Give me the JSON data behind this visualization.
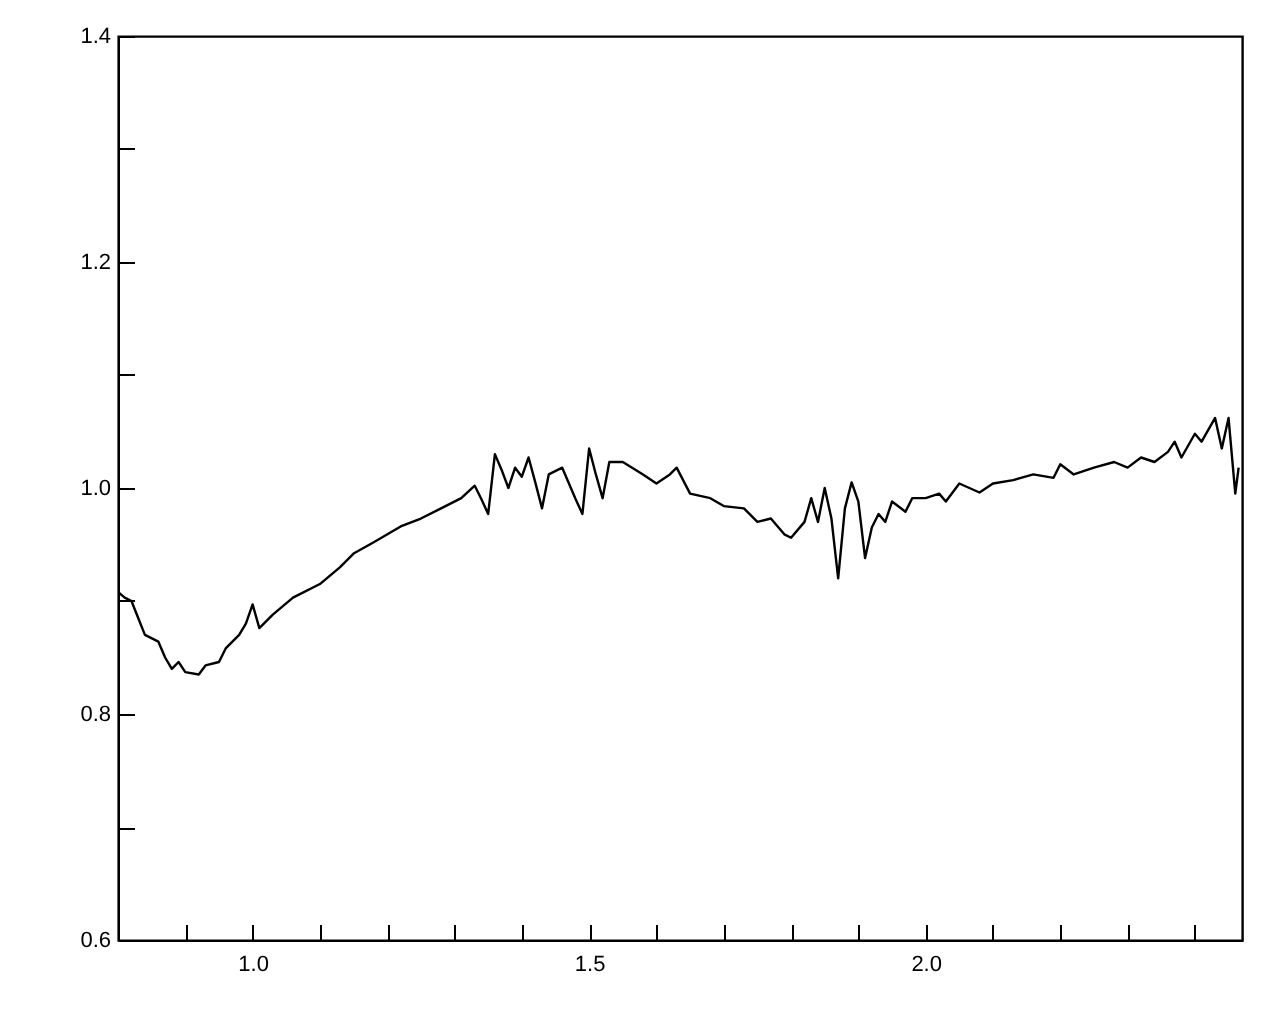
{
  "chart_data": {
    "type": "line",
    "x": [
      0.8,
      0.81,
      0.82,
      0.83,
      0.84,
      0.86,
      0.87,
      0.88,
      0.89,
      0.9,
      0.92,
      0.93,
      0.95,
      0.96,
      0.98,
      0.99,
      1.0,
      1.01,
      1.03,
      1.06,
      1.1,
      1.13,
      1.15,
      1.18,
      1.22,
      1.25,
      1.28,
      1.31,
      1.33,
      1.34,
      1.35,
      1.36,
      1.37,
      1.38,
      1.39,
      1.4,
      1.41,
      1.42,
      1.43,
      1.44,
      1.46,
      1.48,
      1.49,
      1.5,
      1.51,
      1.52,
      1.53,
      1.55,
      1.58,
      1.6,
      1.62,
      1.63,
      1.65,
      1.68,
      1.7,
      1.73,
      1.75,
      1.77,
      1.79,
      1.8,
      1.82,
      1.83,
      1.84,
      1.85,
      1.86,
      1.87,
      1.88,
      1.89,
      1.9,
      1.91,
      1.92,
      1.93,
      1.94,
      1.95,
      1.97,
      1.98,
      2.0,
      2.02,
      2.03,
      2.05,
      2.08,
      2.1,
      2.13,
      2.16,
      2.19,
      2.2,
      2.22,
      2.25,
      2.28,
      2.3,
      2.32,
      2.34,
      2.36,
      2.37,
      2.38,
      2.4,
      2.41,
      2.43,
      2.44,
      2.45,
      2.46,
      2.465
    ],
    "series": [
      {
        "color": "#000000",
        "values": [
          0.908,
          0.903,
          0.9,
          0.885,
          0.87,
          0.864,
          0.85,
          0.84,
          0.846,
          0.837,
          0.835,
          0.843,
          0.846,
          0.858,
          0.87,
          0.88,
          0.897,
          0.876,
          0.888,
          0.903,
          0.915,
          0.93,
          0.942,
          0.952,
          0.966,
          0.973,
          0.982,
          0.991,
          1.002,
          0.99,
          0.977,
          1.03,
          1.016,
          1.0,
          1.018,
          1.01,
          1.027,
          1.005,
          0.982,
          1.012,
          1.018,
          0.99,
          0.977,
          1.035,
          1.012,
          0.991,
          1.023,
          1.023,
          1.012,
          1.004,
          1.012,
          1.018,
          0.995,
          0.991,
          0.984,
          0.982,
          0.97,
          0.973,
          0.959,
          0.956,
          0.97,
          0.991,
          0.97,
          1.0,
          0.973,
          0.92,
          0.982,
          1.005,
          0.988,
          0.938,
          0.965,
          0.977,
          0.97,
          0.988,
          0.979,
          0.991,
          0.991,
          0.995,
          0.988,
          1.004,
          0.996,
          1.004,
          1.007,
          1.012,
          1.009,
          1.021,
          1.012,
          1.018,
          1.023,
          1.018,
          1.027,
          1.023,
          1.032,
          1.041,
          1.027,
          1.048,
          1.041,
          1.062,
          1.035,
          1.062,
          0.995,
          1.018
        ]
      }
    ],
    "xlim": [
      0.8,
      2.47
    ],
    "xticks": [
      {
        "value": 0.9,
        "label": null
      },
      {
        "value": 1.0,
        "label": "1.0"
      },
      {
        "value": 1.1,
        "label": null
      },
      {
        "value": 1.2,
        "label": null
      },
      {
        "value": 1.3,
        "label": null
      },
      {
        "value": 1.4,
        "label": null
      },
      {
        "value": 1.5,
        "label": "1.5"
      },
      {
        "value": 1.6,
        "label": null
      },
      {
        "value": 1.7,
        "label": null
      },
      {
        "value": 1.8,
        "label": null
      },
      {
        "value": 1.9,
        "label": null
      },
      {
        "value": 2.0,
        "label": "2.0"
      },
      {
        "value": 2.1,
        "label": null
      },
      {
        "value": 2.2,
        "label": null
      },
      {
        "value": 2.3,
        "label": null
      },
      {
        "value": 2.4,
        "label": null
      }
    ],
    "ylim": [
      0.6,
      1.4
    ],
    "yticks": [
      {
        "value": 0.6,
        "label": "0.6"
      },
      {
        "value": 0.7,
        "label": null
      },
      {
        "value": 0.8,
        "label": "0.8"
      },
      {
        "value": 0.9,
        "label": null
      },
      {
        "value": 1.0,
        "label": "1.0"
      },
      {
        "value": 1.1,
        "label": null
      },
      {
        "value": 1.2,
        "label": "1.2"
      },
      {
        "value": 1.3,
        "label": null
      },
      {
        "value": 1.4,
        "label": "1.4"
      }
    ],
    "grid": false,
    "marker": "none",
    "line_style": "solid"
  }
}
